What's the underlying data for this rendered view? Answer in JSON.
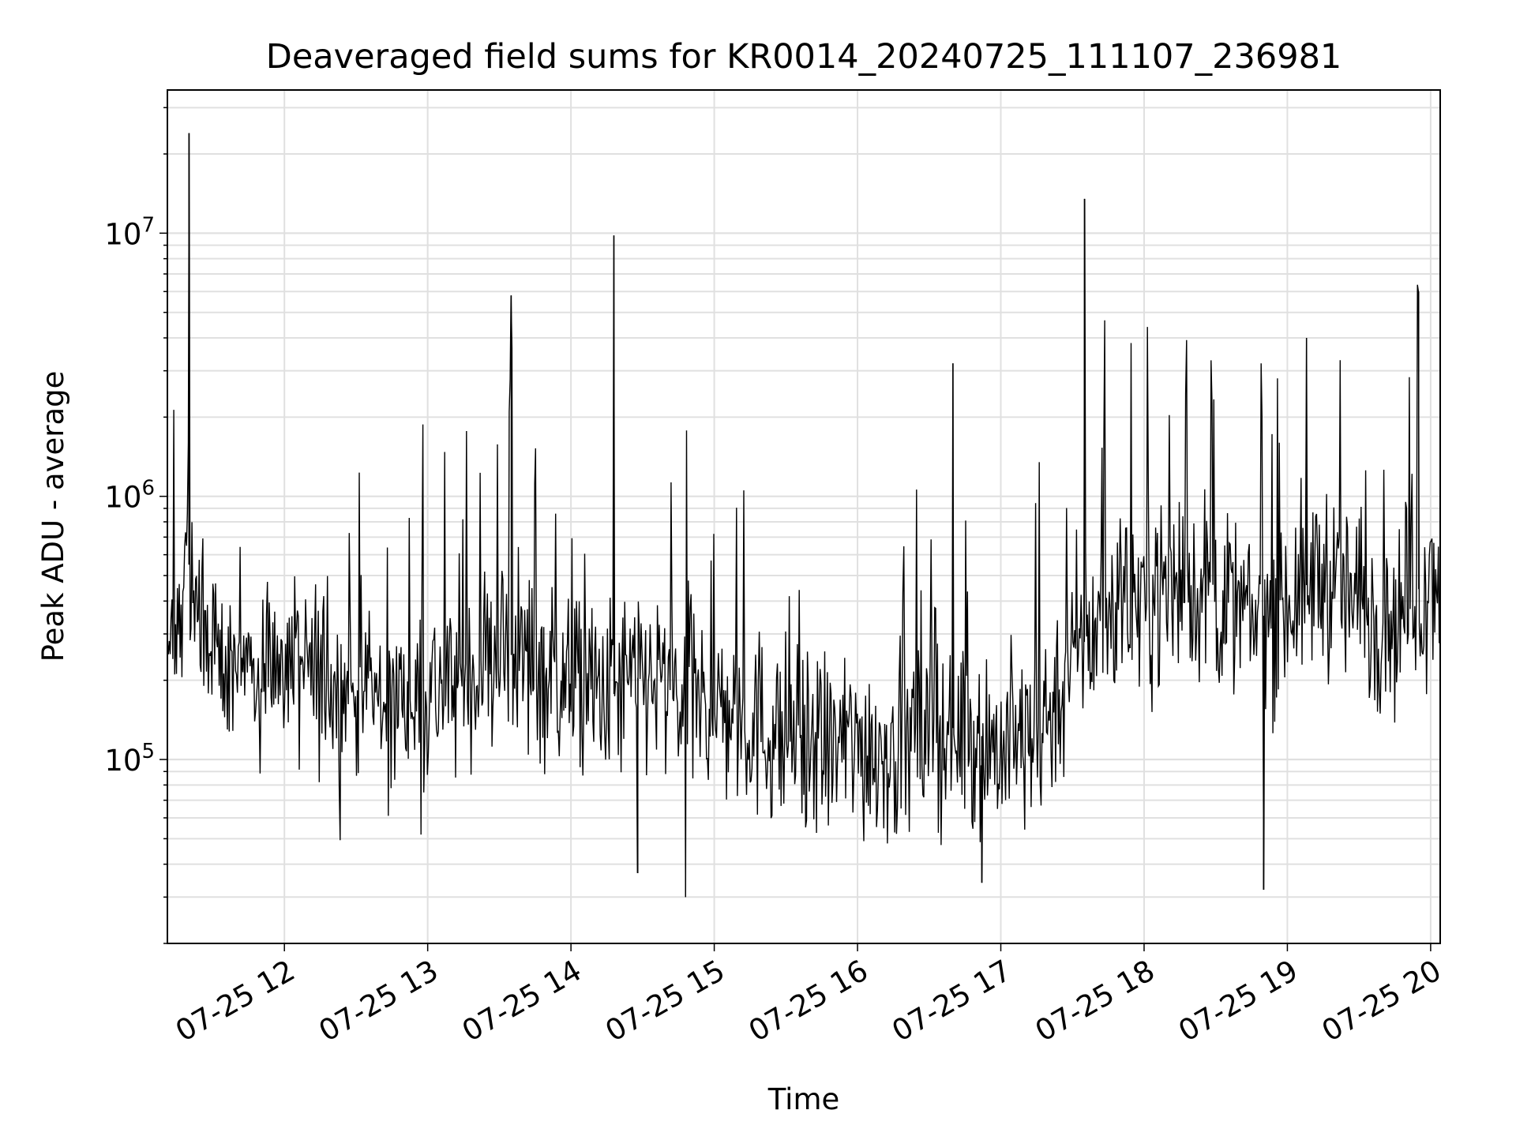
{
  "chart_data": {
    "type": "line",
    "title": "Deaveraged field sums for KR0014_20240725_111107_236981",
    "xlabel": "Time",
    "ylabel": "Peak ADU - average",
    "yscale": "log",
    "ylim": [
      20000,
      35000000
    ],
    "xlim": [
      "07-25 11:11",
      "07-25 20:04"
    ],
    "grid": true,
    "line_color": "#000000",
    "grid_color": "#e0e0e0",
    "x_ticks": [
      "07-25 12",
      "07-25 13",
      "07-25 14",
      "07-25 15",
      "07-25 16",
      "07-25 17",
      "07-25 18",
      "07-25 19",
      "07-25 20"
    ],
    "y_ticks": [
      {
        "value": 100000,
        "mantissa": "10",
        "exponent": "5"
      },
      {
        "value": 1000000,
        "mantissa": "10",
        "exponent": "6"
      },
      {
        "value": 10000000,
        "mantissa": "10",
        "exponent": "7"
      }
    ],
    "series": [
      {
        "x": [
          "07-25 11:11",
          "07-25 11:20",
          "07-25 11:30",
          "07-25 11:45",
          "07-25 12:00",
          "07-25 12:15",
          "07-25 12:30",
          "07-25 12:45",
          "07-25 13:00",
          "07-25 13:15",
          "07-25 13:30",
          "07-25 13:45",
          "07-25 14:00",
          "07-25 14:15",
          "07-25 14:30",
          "07-25 14:45",
          "07-25 15:00",
          "07-25 15:15",
          "07-25 15:30",
          "07-25 15:45",
          "07-25 16:00",
          "07-25 16:15",
          "07-25 16:30",
          "07-25 16:45",
          "07-25 17:00",
          "07-25 17:15",
          "07-25 17:30",
          "07-25 17:45",
          "07-25 18:00",
          "07-25 18:15",
          "07-25 18:30",
          "07-25 18:45",
          "07-25 19:00",
          "07-25 19:15",
          "07-25 19:30",
          "07-25 19:45",
          "07-25 20:04"
        ],
        "y": [
          250000,
          550000,
          250000,
          220000,
          230000,
          200000,
          180000,
          160000,
          180000,
          200000,
          260000,
          230000,
          190000,
          170000,
          210000,
          170000,
          160000,
          140000,
          120000,
          110000,
          115000,
          110000,
          125000,
          135000,
          110000,
          120000,
          240000,
          380000,
          430000,
          480000,
          420000,
          330000,
          400000,
          520000,
          380000,
          350000,
          550000
        ],
        "spikes": [
          {
            "x": "07-25 11:20",
            "y": 24000000
          },
          {
            "x": "07-25 13:35",
            "y": 5800000
          },
          {
            "x": "07-25 14:18",
            "y": 9800000
          },
          {
            "x": "07-25 17:35",
            "y": 13500000
          },
          {
            "x": "07-25 19:55",
            "y": 6000000
          },
          {
            "x": "07-25 16:40",
            "y": 3200000
          },
          {
            "x": "07-25 19:08",
            "y": 4000000
          },
          {
            "x": "07-25 14:28",
            "y": 37000
          },
          {
            "x": "07-25 14:48",
            "y": 30000
          },
          {
            "x": "07-25 18:50",
            "y": 32000
          },
          {
            "x": "07-25 16:52",
            "y": 34000
          }
        ]
      }
    ]
  }
}
